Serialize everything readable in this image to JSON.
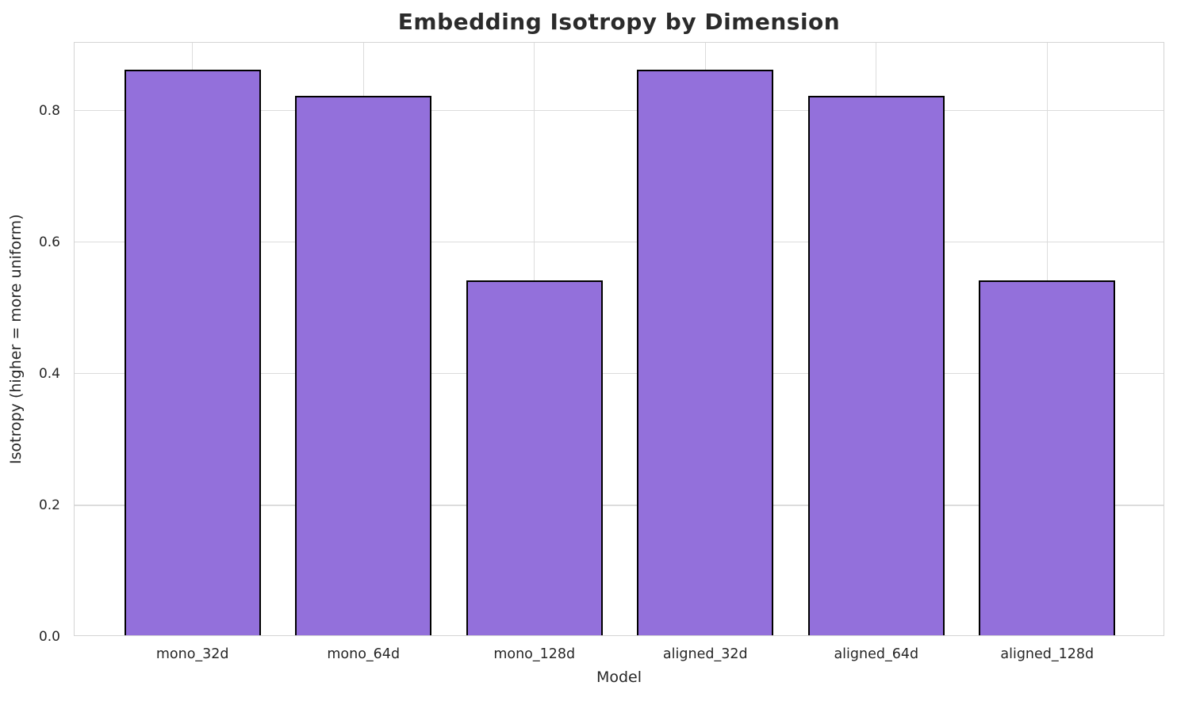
{
  "chart_data": {
    "type": "bar",
    "title": "Embedding Isotropy by Dimension",
    "xlabel": "Model",
    "ylabel": "Isotropy (higher = more uniform)",
    "categories": [
      "mono_32d",
      "mono_64d",
      "mono_128d",
      "aligned_32d",
      "aligned_64d",
      "aligned_128d"
    ],
    "values": [
      0.86,
      0.82,
      0.54,
      0.86,
      0.82,
      0.54
    ],
    "yticks": [
      0.0,
      0.2,
      0.4,
      0.6,
      0.8
    ],
    "ytick_labels": [
      "0.0",
      "0.2",
      "0.4",
      "0.6",
      "0.8"
    ],
    "ylim": [
      0,
      0.903
    ],
    "xlim": [
      -0.69,
      5.69
    ],
    "bar_width_units": 0.8,
    "grid": true,
    "legend_position": "none",
    "bar_color": "#9370DB",
    "bar_edge_color": "#000000",
    "grid_color": "#dcdcdc",
    "spine_color": "#d4d4d4",
    "text_color": "#262626",
    "title_color": "#2b2b2b",
    "background_color": "#ffffff"
  }
}
